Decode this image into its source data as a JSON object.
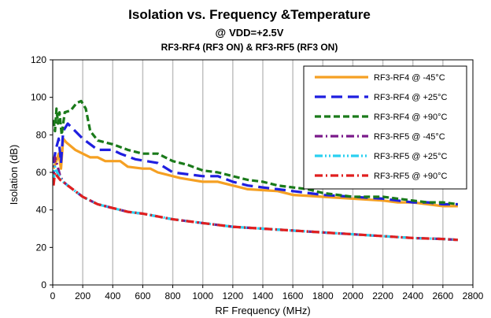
{
  "chart_data": {
    "type": "line",
    "title": "Isolation vs. Frequency &Temperature",
    "subtitle_prefix": "@ ",
    "subtitle_main": "VDD=+2.5V",
    "subtitle2": "RF3-RF4 (RF3 ON) & RF3-RF5 (RF3 ON)",
    "xlabel": "RF Frequency (MHz)",
    "ylabel": "Isolation (dB)",
    "xlim": [
      0,
      2800
    ],
    "ylim": [
      0,
      120
    ],
    "xticks": [
      0,
      200,
      400,
      600,
      800,
      1000,
      1200,
      1400,
      1600,
      1800,
      2000,
      2200,
      2400,
      2600,
      2800
    ],
    "yticks": [
      0,
      20,
      40,
      60,
      80,
      100,
      120
    ],
    "grid": "vertical",
    "legend_position": "top-right",
    "series": [
      {
        "name": "RF3-RF4 @ -45°C",
        "color": "#f5a023",
        "dash": "solid",
        "x": [
          5,
          20,
          40,
          55,
          70,
          90,
          150,
          250,
          300,
          350,
          450,
          500,
          600,
          650,
          700,
          800,
          850,
          1000,
          1100,
          1200,
          1300,
          1500,
          1600,
          1800,
          2000,
          2200,
          2300,
          2400,
          2500,
          2600,
          2700
        ],
        "y": [
          62,
          65,
          70,
          62,
          78,
          76,
          72,
          68,
          68,
          66,
          66,
          63,
          62,
          62,
          60,
          58,
          57,
          55,
          55,
          53,
          51,
          50,
          48,
          47,
          46,
          45,
          44,
          44,
          43,
          42,
          42
        ]
      },
      {
        "name": "RF3-RF4 @ +25°C",
        "color": "#1f1fe0",
        "dash": "longdash",
        "x": [
          5,
          20,
          40,
          55,
          70,
          100,
          200,
          300,
          400,
          450,
          550,
          700,
          800,
          1000,
          1100,
          1200,
          1300,
          1400,
          1500,
          1600,
          1800,
          2000,
          2200,
          2300,
          2400,
          2500,
          2600,
          2700
        ],
        "y": [
          65,
          72,
          78,
          65,
          82,
          86,
          78,
          72,
          72,
          70,
          67,
          65,
          60,
          58,
          58,
          55,
          53,
          52,
          51,
          50,
          48,
          47,
          46,
          45,
          44,
          44,
          43,
          43
        ]
      },
      {
        "name": "RF3-RF4 @ +90°C",
        "color": "#1a7a1a",
        "dash": "dash",
        "x": [
          5,
          15,
          25,
          35,
          45,
          60,
          80,
          120,
          160,
          190,
          220,
          250,
          300,
          400,
          500,
          600,
          700,
          800,
          900,
          1000,
          1100,
          1200,
          1300,
          1400,
          1500,
          1600,
          1700,
          1800,
          2000,
          2200,
          2300,
          2400,
          2500,
          2600,
          2700
        ],
        "y": [
          88,
          82,
          94,
          86,
          92,
          80,
          92,
          93,
          97,
          98,
          94,
          82,
          77,
          75,
          72,
          70,
          70,
          66,
          64,
          61,
          60,
          58,
          56,
          55,
          53,
          52,
          51,
          49,
          47,
          47,
          46,
          45,
          44,
          44,
          43
        ]
      },
      {
        "name": "RF3-RF5 @ -45°C",
        "color": "#7a1a8a",
        "dash": "dashdot",
        "x": [
          5,
          15,
          30,
          50,
          70,
          100,
          150,
          200,
          300,
          400,
          500,
          600,
          800,
          1000,
          1200,
          1400,
          1600,
          1800,
          2000,
          2200,
          2400,
          2600,
          2700
        ],
        "y": [
          57,
          68,
          64,
          58,
          55,
          53,
          50,
          47,
          43,
          41,
          39,
          38,
          35,
          33,
          31,
          30,
          29,
          28,
          27,
          26,
          25,
          24.5,
          24
        ]
      },
      {
        "name": "RF3-RF5 @ +25°C",
        "color": "#2ad0f0",
        "dash": "dashdotdot",
        "x": [
          5,
          15,
          30,
          50,
          70,
          100,
          150,
          200,
          300,
          400,
          500,
          600,
          800,
          1000,
          1200,
          1400,
          1600,
          1800,
          2000,
          2200,
          2400,
          2600,
          2700
        ],
        "y": [
          55,
          63,
          60,
          57,
          55,
          53,
          50,
          47,
          43,
          41,
          39,
          38,
          35,
          33,
          31,
          30,
          29,
          28,
          27,
          26,
          25,
          24.5,
          24
        ]
      },
      {
        "name": "RF3-RF5 @ +90°C",
        "color": "#e01f1f",
        "dash": "dashdot",
        "x": [
          5,
          15,
          30,
          50,
          70,
          100,
          150,
          200,
          300,
          400,
          500,
          600,
          800,
          1000,
          1200,
          1400,
          1600,
          1800,
          2000,
          2200,
          2400,
          2600,
          2700
        ],
        "y": [
          53,
          60,
          58,
          56,
          55,
          53,
          50,
          47,
          43,
          41,
          39,
          38,
          35,
          33,
          31,
          30,
          29,
          28,
          27,
          26,
          25,
          24.5,
          24
        ]
      }
    ]
  }
}
